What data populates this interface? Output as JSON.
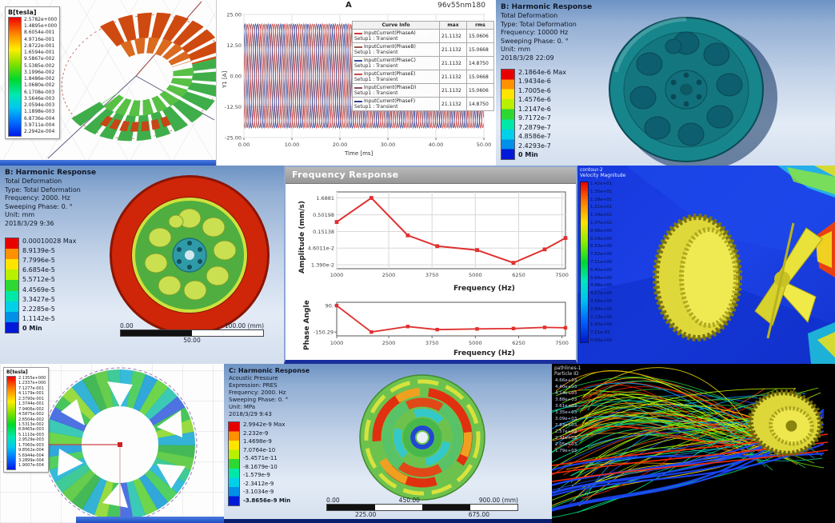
{
  "panels": {
    "maxwell_coil": {
      "legend_title": "B[tesla]",
      "legend_values": [
        "2.5782e+000",
        "1.4895e+000",
        "8.6054e-001",
        "4.9716e-001",
        "2.8722e-001",
        "1.6594e-001",
        "9.5867e-002",
        "5.5385e-002",
        "3.1996e-002",
        "1.8486e-002",
        "1.0680e-002",
        "6.1708e-003",
        "3.5646e-003",
        "2.0594e-003",
        "1.1898e-003",
        "6.8736e-004",
        "3.9711e-004",
        "2.2942e-004"
      ]
    },
    "current_plot": {
      "title": "A",
      "badge": "96v55nm180",
      "xlabel": "Time [ms]",
      "ylabel": "Y1 [A]",
      "legend_headers": [
        "Curve Info",
        "max",
        "rms"
      ]
    },
    "harmonic_10000": {
      "title": "B: Harmonic Response",
      "lines": [
        "Total Deformation",
        "Type: Total Deformation",
        "Frequency: 10000 Hz",
        "Sweeping Phase: 0. °",
        "Unit: mm",
        "2018/3/28 22:09"
      ],
      "legend_values": [
        "2.1864e-6 Max",
        "1.9434e-6",
        "1.7005e-6",
        "1.4576e-6",
        "1.2147e-6",
        "9.7172e-7",
        "7.2879e-7",
        "4.8586e-7",
        "2.4293e-7",
        "0 Min"
      ]
    },
    "harmonic_2000": {
      "title": "B: Harmonic Response",
      "lines": [
        "Total Deformation",
        "Type: Total Deformation",
        "Frequency: 2000. Hz",
        "Sweeping Phase: 0. °",
        "Unit: mm",
        "2018/3/29 9:36"
      ],
      "legend_values": [
        "0.00010028 Max",
        "8.9139e-5",
        "7.7996e-5",
        "6.6854e-5",
        "5.5712e-5",
        "4.4569e-5",
        "3.3427e-5",
        "2.2285e-5",
        "1.1142e-5",
        "0 Min"
      ],
      "scale_left": "0.00",
      "scale_right": "100.00 (mm)",
      "scale_mid": "50.00"
    },
    "freq_response": {
      "window_title": "Frequency Response",
      "amp_ylabel": "Amplitude (mm/s)",
      "phase_ylabel": "Phase Angle",
      "xlabel": "Frequency (Hz)"
    },
    "cfd_velocity": {
      "header": [
        "contour-2",
        "Velocity Magnitude"
      ],
      "values": [
        "1.42e+01",
        "1.35e+01",
        "1.28e+01",
        "1.21e+01",
        "1.14e+01",
        "1.07e+01",
        "9.96e+00",
        "9.24e+00",
        "8.53e+00",
        "7.82e+00",
        "7.11e+00",
        "6.40e+00",
        "5.69e+00",
        "4.98e+00",
        "4.27e+00",
        "3.56e+00",
        "2.84e+00",
        "2.13e+00",
        "1.42e+00",
        "7.11e-01",
        "0.00e+00"
      ]
    },
    "maxwell_rotor": {
      "legend_title": "B[tesla]",
      "legend_values": [
        "2.1355e+000",
        "1.2337e+000",
        "7.1277e-001",
        "4.1179e-001",
        "2.3790e-001",
        "1.3744e-001",
        "7.9406e-002",
        "4.5875e-002",
        "2.6504e-002",
        "1.5313e-002",
        "8.8465e-003",
        "5.1110e-003",
        "2.9529e-003",
        "1.7060e-003",
        "9.8562e-004",
        "5.6944e-004",
        "3.2899e-004",
        "1.9007e-004"
      ]
    },
    "acoustic": {
      "title": "C: Harmonic Response",
      "lines": [
        "Acoustic Pressure",
        "Expression: PRES",
        "Frequency: 2000. Hz",
        "Sweeping Phase: 0. °",
        "Unit: MPa",
        "2018/3/29 9:43"
      ],
      "legend_values": [
        "2.9942e-9 Max",
        "2.232e-9",
        "1.4698e-9",
        "7.0764e-10",
        "-5.4571e-11",
        "-8.1679e-10",
        "-1.579e-9",
        "-2.3412e-9",
        "-3.1034e-9",
        "-3.8656e-9 Min"
      ],
      "scale_top": [
        "0.00",
        "450.00",
        "900.00 (mm)"
      ],
      "scale_bottom": [
        "225.00",
        "675.00"
      ]
    },
    "pathlines": {
      "header": [
        "pathlines-1",
        "Particle ID"
      ],
      "values": [
        "4.66e+03",
        "4.40e+03",
        "4.14e+03",
        "3.88e+03",
        "3.61e+03",
        "3.35e+03",
        "3.09e+03",
        "2.83e+03",
        "2.57e+03",
        "2.31e+03",
        "2.05e+03",
        "1.79e+03"
      ]
    }
  },
  "chart_data": [
    {
      "id": "input_current",
      "type": "line",
      "title": "A",
      "xlabel": "Time [ms]",
      "ylabel": "Y1 [A]",
      "xlim": [
        0,
        50
      ],
      "ylim": [
        -25,
        25
      ],
      "xticks": [
        "0.00",
        "10.00",
        "20.00",
        "30.00",
        "40.00",
        "50.00"
      ],
      "yticks": [
        "25.00",
        "12.50",
        "0.00",
        "-12.50",
        "-25.00"
      ],
      "waveform": {
        "amplitude": 21.1132,
        "period_ms": 2.63
      },
      "series": [
        {
          "name": "InputCurrent(PhaseA)",
          "setup": "Setup1 : Transient",
          "max": "21.1132",
          "rms": "15.0606",
          "color": "#d23a3a",
          "phase_deg": 0
        },
        {
          "name": "InputCurrent(PhaseB)",
          "setup": "Setup1 : Transient",
          "max": "21.1132",
          "rms": "15.0668",
          "color": "#9a5a50",
          "phase_deg": -120
        },
        {
          "name": "InputCurrent(PhaseC)",
          "setup": "Setup1 : Transient",
          "max": "21.1132",
          "rms": "14.8750",
          "color": "#3d4f9e",
          "phase_deg": -240
        },
        {
          "name": "InputCurrent(PhaseE)",
          "setup": "Setup1 : Transient",
          "max": "21.1132",
          "rms": "15.0668",
          "color": "#c84a4a",
          "phase_deg": -60
        },
        {
          "name": "InputCurrent(PhaseD)",
          "setup": "Setup1 : Transient",
          "max": "21.1132",
          "rms": "15.0606",
          "color": "#8a4a6a",
          "phase_deg": -180
        },
        {
          "name": "InputCurrent(PhaseF)",
          "setup": "Setup1 : Transient",
          "max": "21.1132",
          "rms": "14.8750",
          "color": "#35418f",
          "phase_deg": -300
        }
      ]
    },
    {
      "id": "fr_amplitude",
      "type": "line",
      "log_y": true,
      "xlabel": "Frequency (Hz)",
      "ylabel": "Amplitude (mm/s)",
      "xlim": [
        1000,
        7600
      ],
      "xticks": [
        "1000",
        "2500",
        "3750",
        "5000",
        "6250",
        "7500"
      ],
      "ytick_values": [
        1.6881,
        0.50198,
        0.15138,
        0.046011,
        0.0139
      ],
      "ytick_labels": [
        "1.6881",
        "0.50198",
        "0.15138",
        "4.6011e-2",
        "1.390e-2"
      ],
      "x": [
        1000,
        2000,
        3050,
        3900,
        5050,
        6100,
        7000,
        7600
      ],
      "y": [
        0.3,
        1.6881,
        0.115,
        0.053,
        0.04,
        0.016,
        0.042,
        0.095
      ],
      "color": "#e03030"
    },
    {
      "id": "fr_phase",
      "type": "line",
      "xlabel": "Frequency (Hz)",
      "ylabel": "Phase Angle",
      "xlim": [
        1000,
        7600
      ],
      "ylim": [
        -185,
        120
      ],
      "xticks": [
        "1000",
        "2500",
        "3750",
        "5000",
        "6250",
        "7500"
      ],
      "ytick_values": [
        90,
        -150.29
      ],
      "ytick_labels": [
        "90.",
        "-150.29"
      ],
      "x": [
        1000,
        2000,
        3050,
        3900,
        5050,
        6100,
        7000,
        7600
      ],
      "y": [
        90,
        -150,
        -100,
        -128,
        -122,
        -118,
        -108,
        -112
      ],
      "color": "#e03030"
    }
  ]
}
